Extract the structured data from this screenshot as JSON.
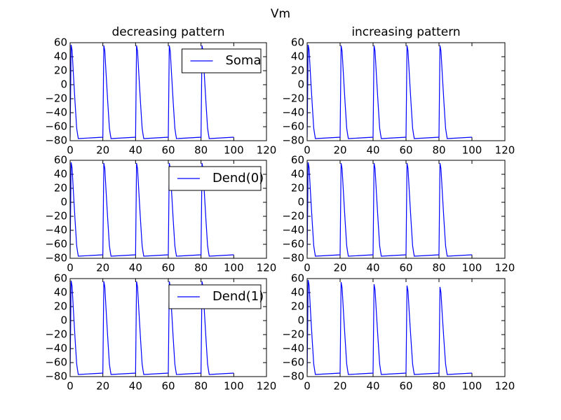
{
  "title": "Vm",
  "chart_data": [
    {
      "type": "line",
      "title": "decreasing pattern",
      "legend": "upper right",
      "x": [
        0,
        0.6,
        1.2,
        2,
        3,
        4,
        4.5,
        5,
        20,
        20.6,
        21.2,
        22,
        23,
        24,
        24.5,
        25,
        40,
        40.6,
        41.2,
        42,
        43,
        44,
        44.5,
        45,
        60,
        60.6,
        61.2,
        62,
        63,
        64,
        64.5,
        65,
        80,
        80.6,
        81.2,
        82,
        83,
        84,
        84.5,
        85,
        100
      ],
      "series": [
        {
          "name": "Soma",
          "color": "#0000ff",
          "values": [
            -75,
            57,
            49,
            15,
            -25,
            -62,
            -70,
            -77,
            -75,
            56,
            48,
            15,
            -25,
            -62,
            -70,
            -77,
            -75,
            56,
            48,
            15,
            -25,
            -62,
            -70,
            -77,
            -75,
            56,
            48,
            15,
            -25,
            -62,
            -70,
            -77,
            -75,
            56,
            48,
            15,
            -25,
            -62,
            -70,
            -77,
            -75
          ]
        }
      ],
      "xlim": [
        0,
        120
      ],
      "xticks": [
        0,
        20,
        40,
        60,
        80,
        100,
        120
      ],
      "ylim": [
        -80,
        60
      ],
      "yticks": [
        {
          "value": -80,
          "label": "−80"
        },
        {
          "value": -60,
          "label": "−60"
        },
        {
          "value": -40,
          "label": "−40"
        },
        {
          "value": -20,
          "label": "−20"
        },
        0,
        20,
        40,
        60
      ]
    },
    {
      "type": "line",
      "title": "increasing pattern",
      "x": [
        0,
        0.6,
        1.2,
        2,
        3,
        4,
        4.5,
        5,
        20,
        20.6,
        21.2,
        22,
        23,
        24,
        24.5,
        25,
        40,
        40.6,
        41.2,
        42,
        43,
        44,
        44.5,
        45,
        60,
        60.6,
        61.2,
        62,
        63,
        64,
        64.5,
        65,
        80,
        80.6,
        81.2,
        82,
        83,
        84,
        84.5,
        85,
        100
      ],
      "series": [
        {
          "color": "#0000ff",
          "values": [
            -75,
            57,
            49,
            15,
            -25,
            -62,
            -70,
            -77,
            -75,
            56,
            48,
            15,
            -25,
            -62,
            -70,
            -77,
            -75,
            56,
            48,
            15,
            -25,
            -62,
            -70,
            -77,
            -75,
            56,
            48,
            15,
            -25,
            -62,
            -70,
            -77,
            -75,
            56,
            48,
            15,
            -25,
            -62,
            -70,
            -77,
            -75
          ]
        }
      ],
      "xlim": [
        0,
        120
      ],
      "xticks": [
        0,
        20,
        40,
        60,
        80,
        100,
        120
      ],
      "ylim": [
        -80,
        60
      ],
      "yticks": [
        {
          "value": -80,
          "label": "−80"
        },
        {
          "value": -60,
          "label": "−60"
        },
        {
          "value": -40,
          "label": "−40"
        },
        {
          "value": -20,
          "label": "−20"
        },
        0,
        20,
        40,
        60
      ]
    },
    {
      "type": "line",
      "legend": "upper right",
      "x": [
        0,
        0.6,
        1.2,
        2,
        3,
        4,
        4.5,
        5,
        20,
        20.6,
        21.2,
        22,
        23,
        24,
        24.5,
        25,
        40,
        40.6,
        41.2,
        42,
        43,
        44,
        44.5,
        45,
        60,
        60.6,
        61.2,
        62,
        63,
        64,
        64.5,
        65,
        80,
        80.6,
        81.2,
        82,
        83,
        84,
        84.5,
        85,
        100
      ],
      "series": [
        {
          "name": "Dend(0)",
          "color": "#0000ff",
          "values": [
            -75,
            57,
            49,
            15,
            -25,
            -62,
            -70,
            -77,
            -75,
            56,
            48,
            15,
            -25,
            -62,
            -70,
            -77,
            -75,
            56,
            48,
            15,
            -25,
            -62,
            -70,
            -77,
            -75,
            56,
            48,
            15,
            -25,
            -62,
            -70,
            -77,
            -75,
            56,
            48,
            15,
            -25,
            -62,
            -70,
            -77,
            -75
          ]
        }
      ],
      "xlim": [
        0,
        120
      ],
      "xticks": [
        0,
        20,
        40,
        60,
        80,
        100,
        120
      ],
      "ylim": [
        -80,
        60
      ],
      "yticks": [
        {
          "value": -80,
          "label": "−80"
        },
        {
          "value": -60,
          "label": "−60"
        },
        {
          "value": -40,
          "label": "−40"
        },
        {
          "value": -20,
          "label": "−20"
        },
        0,
        20,
        40,
        60
      ]
    },
    {
      "type": "line",
      "x": [
        0,
        0.6,
        1.2,
        2,
        3,
        4,
        4.5,
        5,
        20,
        20.6,
        21.2,
        22,
        23,
        24,
        24.5,
        25,
        40,
        40.6,
        41.2,
        42,
        43,
        44,
        44.5,
        45,
        60,
        60.6,
        61.2,
        62,
        63,
        64,
        64.5,
        65,
        80,
        80.6,
        81.2,
        82,
        83,
        84,
        84.5,
        85,
        100
      ],
      "series": [
        {
          "color": "#0000ff",
          "values": [
            -75,
            57,
            49,
            15,
            -25,
            -62,
            -70,
            -77,
            -75,
            56,
            48,
            15,
            -25,
            -62,
            -70,
            -77,
            -75,
            56,
            48,
            15,
            -25,
            -62,
            -70,
            -77,
            -75,
            56,
            48,
            15,
            -25,
            -62,
            -70,
            -77,
            -75,
            56,
            48,
            15,
            -25,
            -62,
            -70,
            -77,
            -75
          ]
        }
      ],
      "xlim": [
        0,
        120
      ],
      "xticks": [
        0,
        20,
        40,
        60,
        80,
        100,
        120
      ],
      "ylim": [
        -80,
        60
      ],
      "yticks": [
        {
          "value": -80,
          "label": "−80"
        },
        {
          "value": -60,
          "label": "−60"
        },
        {
          "value": -40,
          "label": "−40"
        },
        {
          "value": -20,
          "label": "−20"
        },
        0,
        20,
        40,
        60
      ]
    },
    {
      "type": "line",
      "legend": "upper right",
      "x": [
        0,
        0.6,
        1.2,
        2,
        3,
        4,
        4.5,
        5,
        20,
        20.6,
        21.2,
        22,
        23,
        24,
        24.5,
        25,
        40,
        40.6,
        41.2,
        42,
        43,
        44,
        44.5,
        45,
        60,
        60.6,
        61.2,
        62,
        63,
        64,
        64.5,
        65,
        80,
        80.6,
        81.2,
        82,
        83,
        84,
        84.5,
        85,
        100
      ],
      "series": [
        {
          "name": "Dend(1)",
          "color": "#0000ff",
          "values": [
            -75,
            57,
            49,
            15,
            -25,
            -62,
            -70,
            -77,
            -75,
            56,
            48,
            15,
            -25,
            -62,
            -70,
            -77,
            -75,
            56,
            48,
            15,
            -25,
            -62,
            -70,
            -77,
            -75,
            56,
            48,
            15,
            -25,
            -62,
            -70,
            -77,
            -75,
            56,
            48,
            15,
            -25,
            -62,
            -70,
            -77,
            -75
          ]
        }
      ],
      "xlim": [
        0,
        120
      ],
      "xticks": [
        0,
        20,
        40,
        60,
        80,
        100,
        120
      ],
      "ylim": [
        -80,
        60
      ],
      "yticks": [
        {
          "value": -80,
          "label": "−80"
        },
        {
          "value": -60,
          "label": "−60"
        },
        {
          "value": -40,
          "label": "−40"
        },
        {
          "value": -20,
          "label": "−20"
        },
        0,
        20,
        40,
        60
      ]
    },
    {
      "type": "line",
      "x": [
        0,
        0.6,
        1.2,
        2,
        3,
        4,
        4.5,
        5,
        20,
        20.6,
        21.2,
        22,
        23,
        24,
        24.5,
        25,
        40,
        40.6,
        41.2,
        42,
        43,
        44,
        44.5,
        45,
        60,
        60.6,
        61.2,
        62,
        63,
        64,
        64.5,
        65,
        80,
        80.6,
        81.2,
        82,
        83,
        84,
        84.5,
        85,
        100
      ],
      "series": [
        {
          "color": "#0000ff",
          "values": [
            -75,
            58,
            50,
            15,
            -25,
            -62,
            -70,
            -77,
            -75,
            55,
            47,
            14,
            -25,
            -62,
            -70,
            -77,
            -75,
            52,
            44,
            12,
            -26,
            -62,
            -70,
            -77,
            -75,
            50,
            42,
            10,
            -27,
            -62,
            -70,
            -77,
            -75,
            48,
            40,
            8,
            -28,
            -62,
            -70,
            -77,
            -75
          ]
        }
      ],
      "xlim": [
        0,
        120
      ],
      "xticks": [
        0,
        20,
        40,
        60,
        80,
        100,
        120
      ],
      "ylim": [
        -80,
        60
      ],
      "yticks": [
        {
          "value": -80,
          "label": "−80"
        },
        {
          "value": -60,
          "label": "−60"
        },
        {
          "value": -40,
          "label": "−40"
        },
        {
          "value": -20,
          "label": "−20"
        },
        0,
        20,
        40,
        60
      ]
    }
  ]
}
